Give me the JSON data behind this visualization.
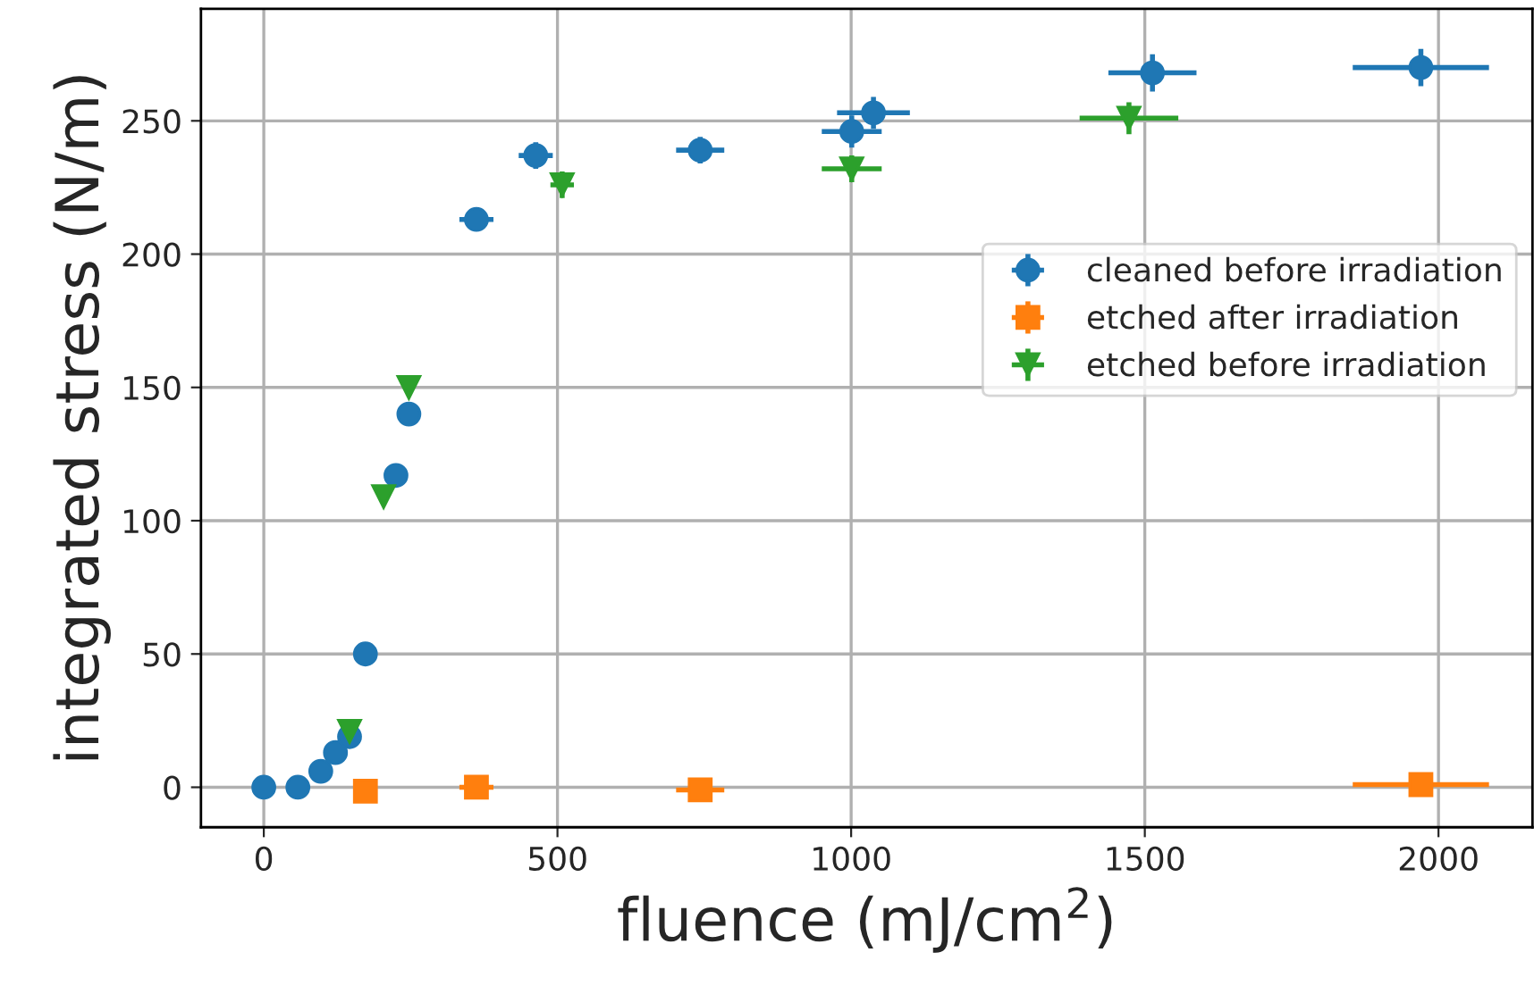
{
  "chart_data": {
    "type": "scatter",
    "xlabel": "fluence (mJ/cm$^{2}$)",
    "ylabel": "integrated stress (N/m)",
    "xlim": [
      -107,
      2160
    ],
    "ylim": [
      -15,
      292
    ],
    "xticks": [
      0,
      500,
      1000,
      1500,
      2000
    ],
    "yticks": [
      0,
      50,
      100,
      150,
      200,
      250
    ],
    "grid": true,
    "legend": "right",
    "series": [
      {
        "name": "cleaned before irradiation",
        "color": "#1f77b4",
        "marker": "circle",
        "x": [
          0,
          58,
          97,
          122,
          146,
          173,
          225,
          247,
          362,
          463,
          743,
          1001,
          1038,
          1513,
          1970
        ],
        "values": [
          0,
          0,
          6,
          13,
          19,
          50,
          117,
          140,
          213,
          237,
          239,
          246,
          253,
          268,
          270
        ],
        "errors": [
          null,
          null,
          null,
          null,
          null,
          null,
          null,
          null,
          4,
          5,
          5,
          6,
          6,
          7,
          7
        ],
        "xerrors": [
          null,
          null,
          null,
          null,
          null,
          null,
          null,
          null,
          29,
          29,
          41,
          51,
          62,
          75,
          116
        ]
      },
      {
        "name": "etched after irradiation",
        "color": "#ff7f0e",
        "marker": "square",
        "x": [
          173,
          362,
          743,
          1970
        ],
        "values": [
          -1.5,
          0,
          -1,
          1
        ],
        "errors": [
          null,
          1,
          1,
          1
        ],
        "xerrors": [
          null,
          29,
          41,
          116
        ]
      },
      {
        "name": "etched before irradiation",
        "color": "#2ca02c",
        "marker": "triangle",
        "x": [
          146,
          204,
          247,
          508,
          1001,
          1473
        ],
        "values": [
          21,
          109,
          150,
          226,
          232,
          251
        ],
        "errors": [
          null,
          null,
          null,
          5,
          5,
          6
        ],
        "xerrors": [
          null,
          null,
          null,
          20,
          51,
          84
        ]
      }
    ]
  }
}
